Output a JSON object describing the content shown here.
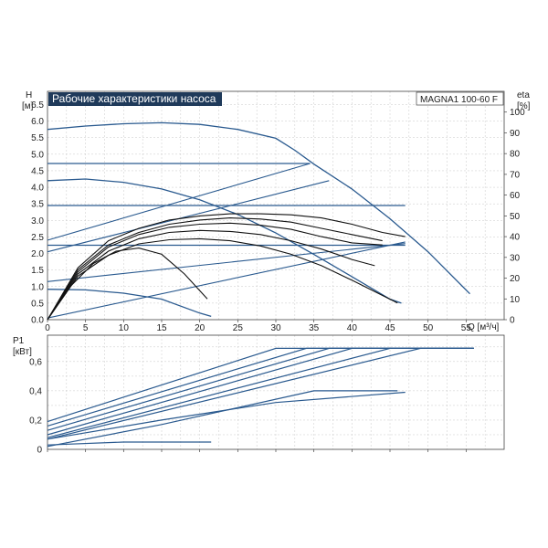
{
  "title": "Рабочие характеристики насоса",
  "model": "MAGNA1 100-60 F",
  "colors": {
    "blue": "#2a5a8f",
    "black": "#111111",
    "grid": "#c8c8c8",
    "title_bg": "#1f3a5a"
  },
  "chart_data": [
    {
      "type": "line",
      "name": "H-Q",
      "ylabel_line1": "H",
      "ylabel_line2": "[м]",
      "y2label_line1": "eta",
      "y2label_line2": "[%]",
      "xlabel": "Q [м³/ч]",
      "xlim": [
        0,
        60
      ],
      "ylim": [
        0,
        6.9
      ],
      "y2lim": [
        0,
        110
      ],
      "grid": true,
      "x_ticks": [
        0,
        5,
        10,
        15,
        20,
        25,
        30,
        35,
        40,
        45,
        50,
        55
      ],
      "y_ticks": [
        "0.0",
        "0.5",
        "1.0",
        "1.5",
        "2.0",
        "2.5",
        "3.0",
        "3.5",
        "4.0",
        "4.5",
        "5.0",
        "5.5",
        "6.0",
        "6.5"
      ],
      "y2_ticks": [
        "0",
        "10",
        "20",
        "30",
        "40",
        "50",
        "60",
        "70",
        "80",
        "90",
        "100"
      ],
      "head_series": [
        {
          "x": [
            0,
            5,
            10,
            15,
            20,
            25,
            30,
            32.5,
            35,
            40,
            45,
            50,
            55.5
          ],
          "y": [
            5.75,
            5.85,
            5.92,
            5.95,
            5.9,
            5.75,
            5.48,
            5.12,
            4.7,
            3.95,
            3.05,
            2.05,
            0.78
          ]
        },
        {
          "x": [
            0,
            34.5
          ],
          "y": [
            4.72,
            4.72
          ]
        },
        {
          "x": [
            0,
            5,
            10,
            15,
            20,
            25,
            30,
            35,
            40,
            45,
            46.5
          ],
          "y": [
            4.2,
            4.25,
            4.15,
            3.95,
            3.62,
            3.18,
            2.62,
            1.97,
            1.3,
            0.62,
            0.5
          ]
        },
        {
          "x": [
            0,
            47
          ],
          "y": [
            3.45,
            3.45
          ]
        },
        {
          "x": [
            0,
            47
          ],
          "y": [
            2.25,
            2.25
          ]
        },
        {
          "x": [
            0,
            5,
            10,
            15,
            20,
            21.5
          ],
          "y": [
            0.92,
            0.9,
            0.8,
            0.62,
            0.2,
            0.1
          ]
        }
      ],
      "system_curves": [
        {
          "x": [
            0,
            34.5
          ],
          "y": [
            2.4,
            4.72
          ]
        },
        {
          "x": [
            0,
            37
          ],
          "y": [
            2.05,
            4.2
          ]
        },
        {
          "x": [
            0,
            47
          ],
          "y": [
            1.15,
            2.3
          ]
        },
        {
          "x": [
            0,
            47
          ],
          "y": [
            0.05,
            2.35
          ]
        }
      ],
      "eta_series": [
        {
          "x": [
            0,
            4,
            8,
            12,
            16,
            20,
            24,
            28,
            32,
            36,
            40,
            44,
            47
          ],
          "y": [
            0,
            25,
            38,
            44,
            48,
            50,
            51,
            51,
            50.5,
            49,
            46,
            42,
            40
          ]
        },
        {
          "x": [
            0,
            4,
            8,
            12,
            16,
            20,
            24,
            28,
            32,
            36,
            40,
            44
          ],
          "y": [
            0,
            24,
            36,
            42,
            46,
            48,
            49,
            48.5,
            47,
            44,
            41,
            38
          ]
        },
        {
          "x": [
            0,
            4,
            8,
            12,
            16,
            20,
            24,
            28,
            32,
            36,
            40,
            44
          ],
          "y": [
            0,
            23,
            35,
            41,
            44.5,
            46,
            46.5,
            45.5,
            43.5,
            40,
            37,
            36
          ]
        },
        {
          "x": [
            0,
            4,
            8,
            12,
            16,
            20,
            24,
            28,
            32,
            36,
            40,
            43
          ],
          "y": [
            0,
            22,
            33,
            39,
            42,
            43,
            42.5,
            41,
            38,
            34,
            29,
            26
          ]
        },
        {
          "x": [
            0,
            4,
            8,
            12,
            16,
            20,
            24,
            28,
            32,
            36,
            40,
            46
          ],
          "y": [
            0,
            21,
            31,
            36.5,
            38.5,
            39,
            38,
            35.5,
            31.5,
            26,
            19,
            8
          ]
        },
        {
          "x": [
            0,
            3,
            6,
            9,
            12,
            15,
            18,
            21
          ],
          "y": [
            0,
            16,
            27,
            33,
            34.5,
            31.5,
            22,
            10
          ]
        }
      ]
    },
    {
      "type": "line",
      "name": "P1-Q",
      "ylabel_line1": "P1",
      "ylabel_line2": "[кВт]",
      "xlim": [
        0,
        60
      ],
      "ylim": [
        0,
        0.78
      ],
      "grid": true,
      "y_ticks": [
        "0",
        "0,2",
        "0,4",
        "0,6"
      ],
      "series": [
        {
          "x": [
            0,
            30,
            56
          ],
          "y": [
            0.19,
            0.69,
            0.69
          ]
        },
        {
          "x": [
            0,
            34,
            56
          ],
          "y": [
            0.16,
            0.69,
            0.69
          ]
        },
        {
          "x": [
            0,
            37,
            56
          ],
          "y": [
            0.13,
            0.69,
            0.69
          ]
        },
        {
          "x": [
            0,
            40,
            56
          ],
          "y": [
            0.1,
            0.69,
            0.69
          ]
        },
        {
          "x": [
            0,
            45,
            56
          ],
          "y": [
            0.08,
            0.69,
            0.69
          ]
        },
        {
          "x": [
            0,
            49,
            56
          ],
          "y": [
            0.07,
            0.69,
            0.69
          ]
        },
        {
          "x": [
            0,
            15,
            30,
            47
          ],
          "y": [
            0.07,
            0.2,
            0.32,
            0.39
          ]
        },
        {
          "x": [
            0,
            15,
            35,
            46
          ],
          "y": [
            0.02,
            0.17,
            0.4,
            0.4
          ]
        },
        {
          "x": [
            0,
            10,
            21.5
          ],
          "y": [
            0.03,
            0.05,
            0.05
          ]
        }
      ]
    }
  ]
}
